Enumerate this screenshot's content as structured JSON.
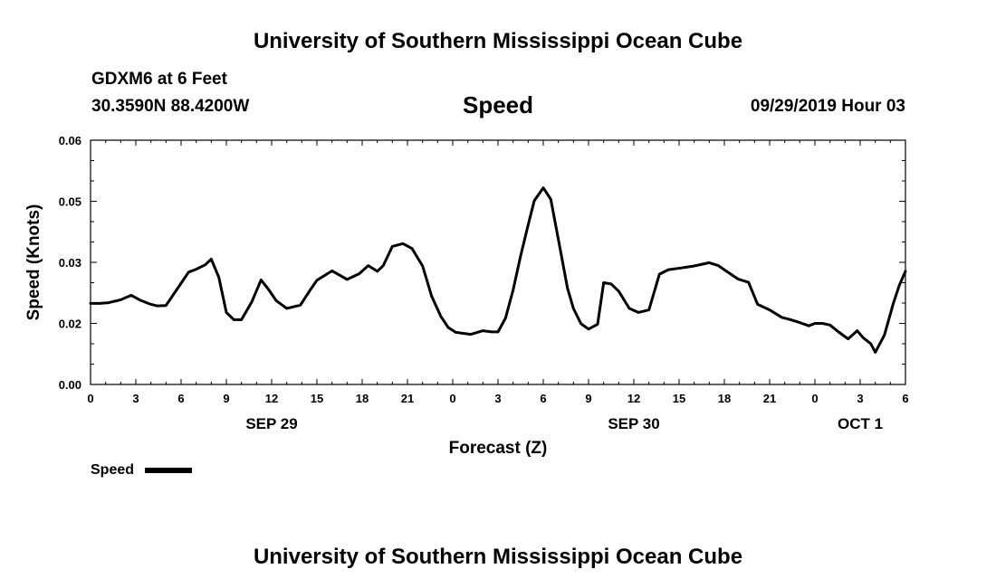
{
  "header": {
    "title": "University of Southern Mississippi Ocean Cube",
    "station": "GDXM6 at 6 Feet",
    "location": "30.3590N 88.4200W",
    "datetime": "09/29/2019 Hour 03"
  },
  "footer": {
    "title": "University of Southern Mississippi Ocean Cube"
  },
  "chart_data": {
    "type": "line",
    "title": "Speed",
    "xlabel": "Forecast (Z)",
    "ylabel": "Speed (Knots)",
    "ylim": [
      0,
      0.06
    ],
    "xlim": [
      0,
      54
    ],
    "yticks": [
      "0.00",
      "0.02",
      "0.03",
      "0.05",
      "0.06"
    ],
    "ytick_values": [
      0,
      0.015,
      0.03,
      0.045,
      0.06
    ],
    "xticks": [
      {
        "x": 0,
        "label": "0"
      },
      {
        "x": 3,
        "label": "3"
      },
      {
        "x": 6,
        "label": "6"
      },
      {
        "x": 9,
        "label": "9"
      },
      {
        "x": 12,
        "label": "12"
      },
      {
        "x": 15,
        "label": "15"
      },
      {
        "x": 18,
        "label": "18"
      },
      {
        "x": 21,
        "label": "21"
      },
      {
        "x": 24,
        "label": "0"
      },
      {
        "x": 27,
        "label": "3"
      },
      {
        "x": 30,
        "label": "6"
      },
      {
        "x": 33,
        "label": "9"
      },
      {
        "x": 36,
        "label": "12"
      },
      {
        "x": 39,
        "label": "15"
      },
      {
        "x": 42,
        "label": "18"
      },
      {
        "x": 45,
        "label": "21"
      },
      {
        "x": 48,
        "label": "0"
      },
      {
        "x": 51,
        "label": "3"
      },
      {
        "x": 54,
        "label": "6"
      }
    ],
    "date_labels": [
      {
        "x": 12,
        "label": "SEP 29"
      },
      {
        "x": 36,
        "label": "SEP 30"
      },
      {
        "x": 51,
        "label": "OCT 1"
      }
    ],
    "grid": false,
    "legend": {
      "placement": "bottom-left",
      "entries": [
        "Speed"
      ]
    },
    "series": [
      {
        "name": "Speed",
        "color": "#000000",
        "x": [
          0,
          0.6,
          1.2,
          2,
          2.7,
          3.3,
          3.9,
          4.4,
          5,
          5.9,
          6.5,
          7,
          7.6,
          8,
          8.5,
          9,
          9.5,
          10,
          10.7,
          11.3,
          11.8,
          12.3,
          13,
          13.9,
          14.5,
          15,
          16,
          17,
          17.8,
          18.4,
          19,
          19.4,
          20,
          20.7,
          21.3,
          22,
          22.6,
          23.2,
          23.7,
          24.2,
          25.2,
          26,
          26.6,
          27,
          27.5,
          28,
          28.5,
          29,
          29.4,
          30,
          30.5,
          31,
          31.6,
          32,
          32.5,
          33,
          33.6,
          34,
          34.5,
          35,
          35.7,
          36.3,
          37,
          37.7,
          38.3,
          39.1,
          40,
          41,
          41.6,
          42.1,
          42.9,
          43.6,
          44.2,
          45,
          45.8,
          46.4,
          47,
          47.6,
          48,
          48.5,
          49,
          49.6,
          50.2,
          50.8,
          51.2,
          51.7,
          52,
          52.6,
          53.2,
          53.6,
          54
        ],
        "y": [
          0.0199,
          0.0199,
          0.0201,
          0.0208,
          0.0219,
          0.0207,
          0.0198,
          0.0193,
          0.0194,
          0.0243,
          0.0276,
          0.0283,
          0.0294,
          0.0308,
          0.0263,
          0.0177,
          0.0159,
          0.0159,
          0.0204,
          0.0257,
          0.0233,
          0.0206,
          0.0187,
          0.0195,
          0.0229,
          0.0256,
          0.0279,
          0.0258,
          0.0272,
          0.0292,
          0.0278,
          0.0292,
          0.0339,
          0.0346,
          0.0334,
          0.0291,
          0.0217,
          0.0168,
          0.014,
          0.0128,
          0.0123,
          0.0132,
          0.0129,
          0.0129,
          0.0163,
          0.0232,
          0.0316,
          0.0392,
          0.0451,
          0.0483,
          0.0455,
          0.0356,
          0.0237,
          0.0187,
          0.0149,
          0.0136,
          0.0148,
          0.025,
          0.0247,
          0.0229,
          0.0187,
          0.0177,
          0.0183,
          0.0271,
          0.0282,
          0.0286,
          0.0291,
          0.0299,
          0.0292,
          0.0279,
          0.0259,
          0.0251,
          0.0197,
          0.0183,
          0.0165,
          0.0159,
          0.0152,
          0.0144,
          0.015,
          0.015,
          0.0146,
          0.0128,
          0.0112,
          0.0132,
          0.0115,
          0.01,
          0.0079,
          0.0121,
          0.02,
          0.0244,
          0.0278
        ]
      }
    ]
  }
}
